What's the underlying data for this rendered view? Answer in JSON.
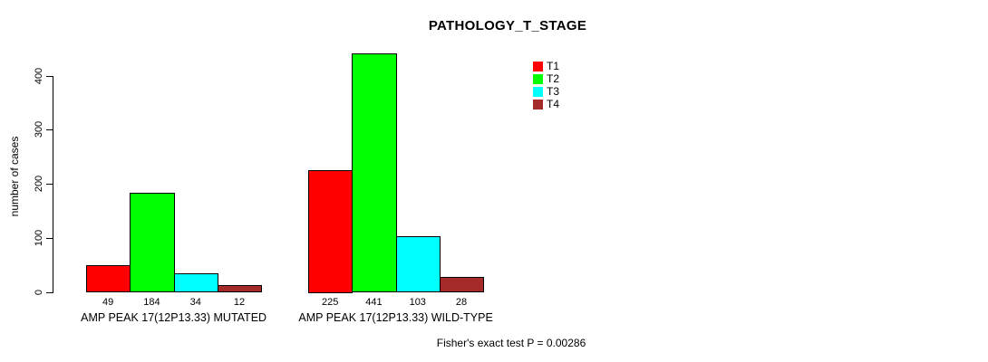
{
  "chart_data": {
    "type": "bar",
    "title": "PATHOLOGY_T_STAGE",
    "ylabel": "number of cases",
    "xlabel": "",
    "categories": [
      "AMP PEAK 17(12P13.33) MUTATED",
      "AMP PEAK 17(12P13.33) WILD-TYPE"
    ],
    "series": [
      {
        "name": "T1",
        "color": "#ff0000",
        "values": [
          49,
          225
        ]
      },
      {
        "name": "T2",
        "color": "#00ff00",
        "values": [
          184,
          441
        ]
      },
      {
        "name": "T3",
        "color": "#00ffff",
        "values": [
          34,
          103
        ]
      },
      {
        "name": "T4",
        "color": "#a52a2a",
        "values": [
          12,
          28
        ]
      }
    ],
    "yticks": [
      0,
      100,
      200,
      300,
      400
    ],
    "ylim": [
      0,
      450
    ],
    "grid": false,
    "legend_position": "top-right",
    "bar_value_labels_shown": true,
    "annotation": "Fisher's exact test P = 0.00286"
  }
}
